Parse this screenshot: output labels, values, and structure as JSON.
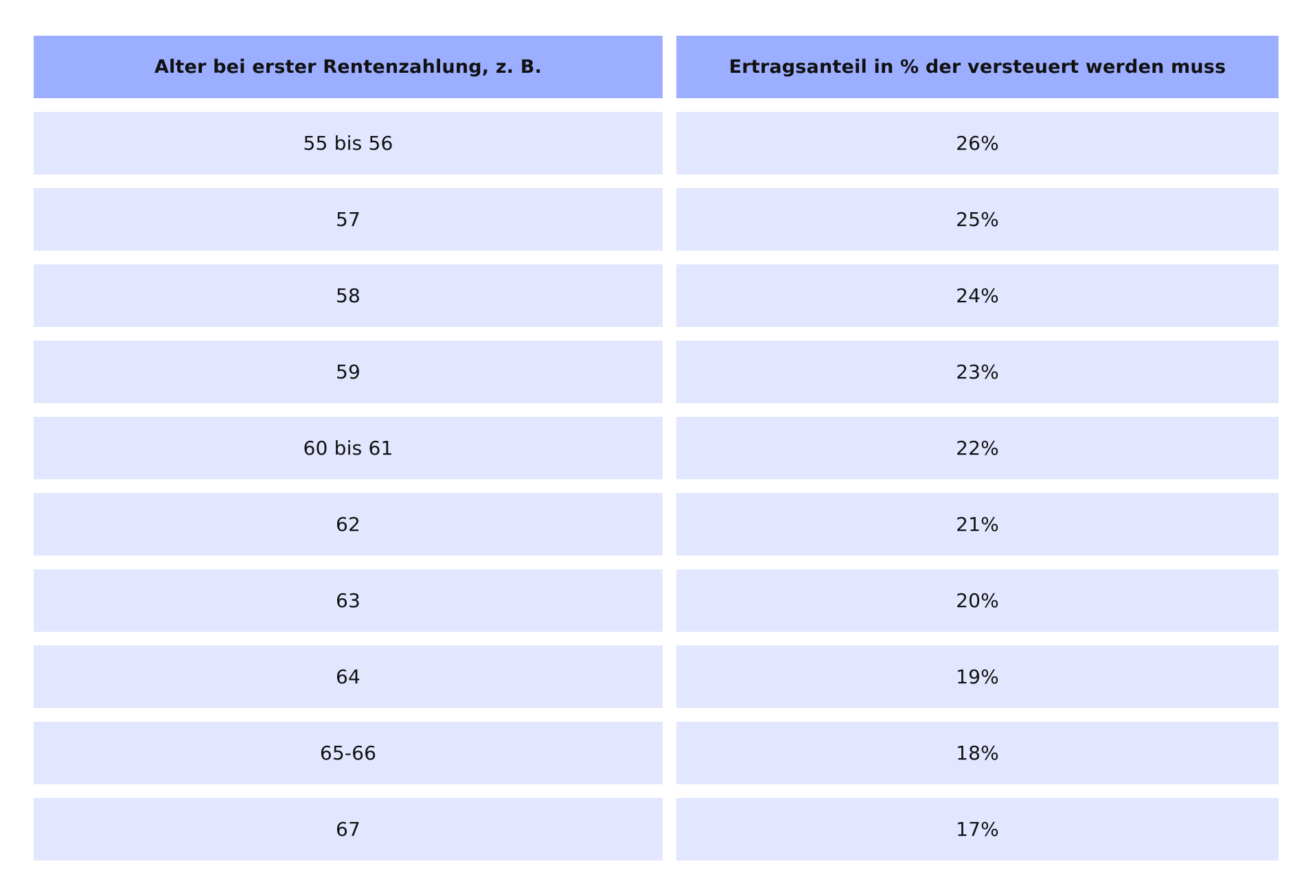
{
  "table": {
    "headers": [
      "Alter bei erster Rentenzahlung, z. B.",
      "Ertragsanteil in % der versteuert werden muss"
    ],
    "rows": [
      [
        "55 bis 56",
        "26%"
      ],
      [
        "57",
        "25%"
      ],
      [
        "58",
        "24%"
      ],
      [
        "59",
        "23%"
      ],
      [
        "60 bis 61",
        "22%"
      ],
      [
        "62",
        "21%"
      ],
      [
        "63",
        "20%"
      ],
      [
        "64",
        "19%"
      ],
      [
        "65-66",
        "18%"
      ],
      [
        "67",
        "17%"
      ]
    ]
  },
  "colors": {
    "header_background": "#9caeff",
    "row_background": "#e2e6fe",
    "text": "#111111"
  }
}
